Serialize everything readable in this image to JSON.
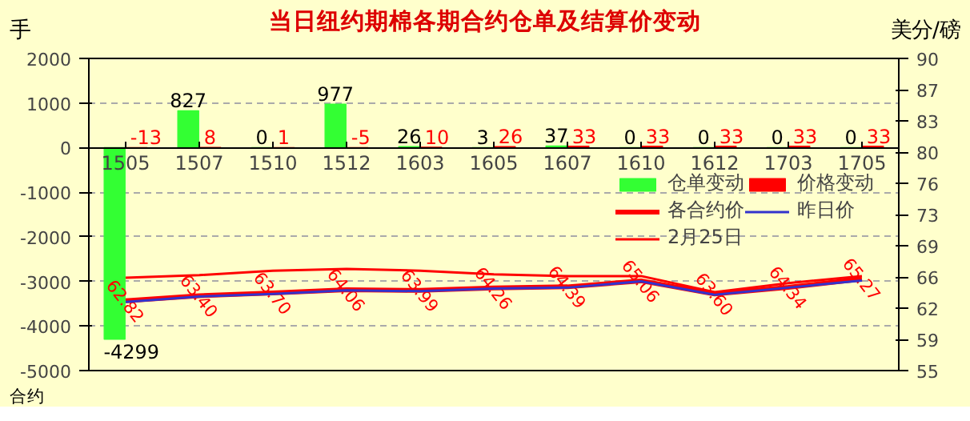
{
  "chart_data": {
    "type": "bar",
    "title": "当日纽约期棉各期合约仓单及结算价变动",
    "ylabel": "手",
    "y2label": "美分/磅",
    "xlabel": "合约",
    "categories": [
      "1505",
      "1507",
      "1510",
      "1512",
      "1603",
      "1605",
      "1607",
      "1610",
      "1612",
      "1703",
      "1705"
    ],
    "series": [
      {
        "name": "仓单变动",
        "color": "#33ff33",
        "values": [
          -4299,
          827,
          0,
          977,
          26,
          3,
          37,
          0,
          0,
          0,
          0
        ],
        "value_labels": [
          "-4299",
          "827",
          "0",
          "977",
          "26",
          "3",
          "37",
          "0",
          "0",
          "0",
          "0"
        ]
      },
      {
        "name": "价格变动",
        "color": "#ff0000",
        "values": [
          -13,
          8,
          1,
          -5,
          10,
          26,
          33,
          33,
          33,
          33,
          33
        ],
        "value_labels": [
          "-13",
          "8",
          "1",
          "-5",
          "10",
          "26",
          "33",
          "33",
          "33",
          "33",
          "33"
        ]
      },
      {
        "name": "各合约价",
        "type": "line",
        "axis": "y2",
        "color": "#ff0000",
        "values": [
          62.82,
          63.4,
          63.7,
          64.06,
          63.99,
          64.26,
          64.39,
          65.06,
          63.6,
          64.34,
          65.27
        ],
        "value_labels": [
          "62.82",
          "63.40",
          "63.70",
          "64.06",
          "63.99",
          "64.26",
          "64.39",
          "65.06",
          "63.60",
          "64.34",
          "65.27"
        ]
      },
      {
        "name": "昨日价",
        "type": "line",
        "axis": "y2",
        "color": "#3333cc",
        "values": [
          62.7,
          63.3,
          63.6,
          64.0,
          63.9,
          64.2,
          64.3,
          65.0,
          63.5,
          64.3,
          65.1
        ]
      },
      {
        "name": "2月25日",
        "type": "line",
        "axis": "y2",
        "color": "#ff0000",
        "values": [
          65.4,
          65.7,
          66.2,
          66.4,
          66.2,
          65.8,
          65.6,
          65.6,
          63.8,
          64.8,
          65.6
        ]
      }
    ],
    "ylim": [
      -5000,
      2000
    ],
    "yticks": [
      -5000,
      -4000,
      -3000,
      -2000,
      -1000,
      0,
      1000,
      2000
    ],
    "y2lim": [
      55,
      90
    ],
    "y2ticks": [
      55,
      {
        "value": 58.5,
        "label": "59"
      },
      62,
      {
        "value": 65.5,
        "label": "66"
      },
      69,
      {
        "value": 72.5,
        "label": "73"
      },
      76,
      {
        "value": 79.5,
        "label": "80"
      },
      83,
      {
        "value": 86.5,
        "label": "87"
      },
      90
    ],
    "grid": "y",
    "legend": "right"
  }
}
